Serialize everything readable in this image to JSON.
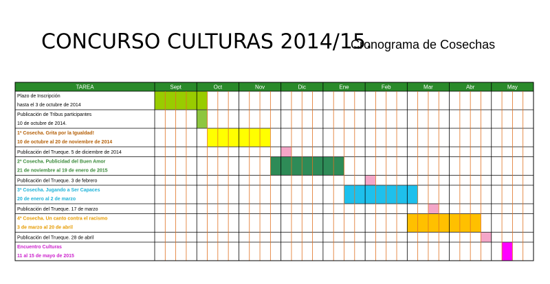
{
  "title": "CONCURSO CULTURAS 2014/15.",
  "subtitle": "Cronograma de Cosechas",
  "table": {
    "header": "TAREA",
    "months": [
      "Sept",
      "Oct",
      "Nov",
      "Dic",
      "Ene",
      "Feb",
      "Mar",
      "Abr",
      "May"
    ],
    "rows": [
      {
        "lines": [
          "Plazo de Inscripción",
          "hasta el 3 de octubre de 2014"
        ],
        "color": "#000000",
        "start": 0,
        "end": 5,
        "fill": "#99cc00"
      },
      {
        "lines": [
          "Publicación de Tribus participantes",
          "10 de octubre de 2014."
        ],
        "color": "#000000",
        "start": 4,
        "end": 5,
        "fill": "#8dc63f"
      },
      {
        "lines": [
          "1ª Cosecha. Grita por la Igualdad!",
          "10 de octubre al 20 de noviembre de 2014"
        ],
        "color": "#b45f06",
        "start": 5,
        "end": 11,
        "fill": "#ffff00"
      },
      {
        "lines": [
          "Publicación del Trueque. 5 de diciembre de 2014"
        ],
        "color": "#000000",
        "start": 12,
        "end": 13,
        "fill": "#f4a6c8"
      },
      {
        "lines": [
          "2ª Cosecha. Publicidad del Buen Amor",
          "21 de noviembre al 19 de enero de 2015"
        ],
        "color": "#3b8b3b",
        "start": 11,
        "end": 18,
        "fill": "#2e8b57"
      },
      {
        "lines": [
          "Publicación del Trueque. 3 de febrero"
        ],
        "color": "#000000",
        "start": 20,
        "end": 21,
        "fill": "#f4a6c8"
      },
      {
        "lines": [
          "3ª Cosecha. Jugando a Ser Capaces",
          "20 de enero al 2 de marzo"
        ],
        "color": "#1fb3d9",
        "start": 18,
        "end": 25,
        "fill": "#1ec0ec"
      },
      {
        "lines": [
          "Publicación del Trueque. 17 de marzo"
        ],
        "color": "#000000",
        "start": 26,
        "end": 27,
        "fill": "#f4a6c8"
      },
      {
        "lines": [
          "4ª Cosecha. Un canto contra el racismo",
          "3 de marzo al 20 de abril"
        ],
        "color": "#e69b00",
        "start": 24,
        "end": 31,
        "fill": "#ffc000"
      },
      {
        "lines": [
          "Publicación del Trueque. 28 de abril"
        ],
        "color": "#000000",
        "start": 31,
        "end": 32,
        "fill": "#f4a6c8"
      },
      {
        "lines": [
          "Encuentro Culturas",
          "11 al 15 de mayo de 2015"
        ],
        "color": "#cc22cc",
        "start": 33,
        "end": 34,
        "fill": "#ff00ff"
      }
    ]
  }
}
